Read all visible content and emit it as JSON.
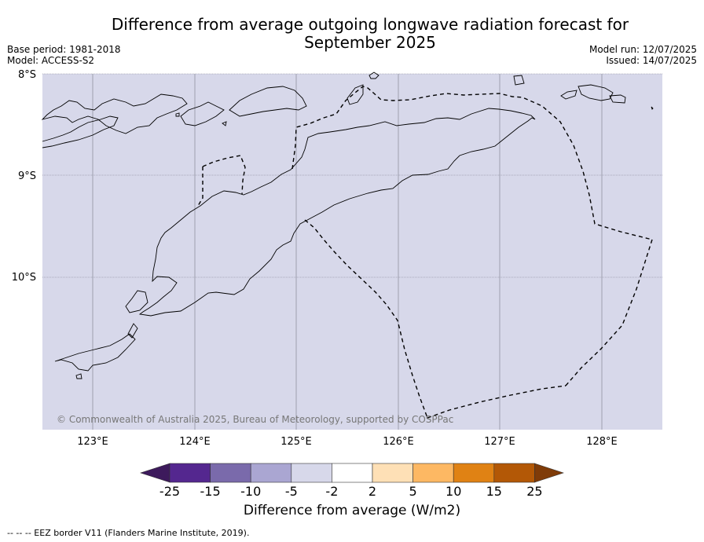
{
  "header": {
    "title_line1": "Difference from average outgoing longwave radiation forecast for",
    "title_line2": "September 2025",
    "base_period": "Base period: 1981-2018",
    "model": "Model: ACCESS-S2",
    "model_run": "Model run: 12/07/2025",
    "issued": "Issued: 14/07/2025"
  },
  "map": {
    "background_color": "#d7d8ea",
    "lat_labels": [
      "8°S",
      "9°S",
      "10°S"
    ],
    "lon_labels": [
      "123°E",
      "124°E",
      "125°E",
      "126°E",
      "127°E",
      "128°E"
    ],
    "copyright": "© Commonwealth of Australia 2025, Bureau of Meteorology, supported by COSPPac"
  },
  "colorbar": {
    "ticks": [
      "-25",
      "-15",
      "-10",
      "-5",
      "-2",
      "2",
      "5",
      "10",
      "15",
      "25"
    ],
    "colors": [
      "#3d1a5c",
      "#54278f",
      "#7a6aab",
      "#aaa6d2",
      "#d7d8ea",
      "#ffffff",
      "#fee0b6",
      "#fdb863",
      "#e08214",
      "#b35806",
      "#7f3b08"
    ],
    "label": "Difference from average (W/m2)"
  },
  "footnote": "--  --  -- EEZ border V11 (Flanders Marine Institute, 2019)."
}
